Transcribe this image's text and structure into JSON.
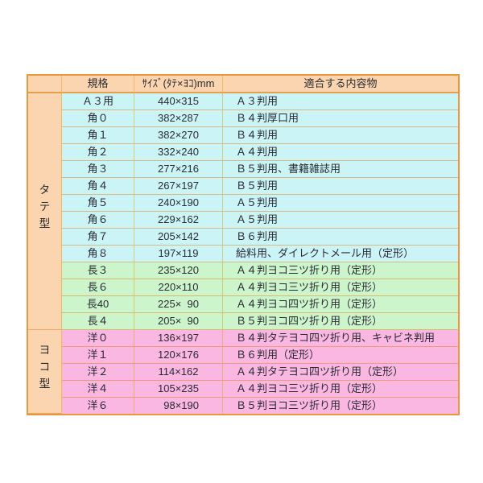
{
  "chart_data": {
    "type": "table",
    "headers": {
      "group": "",
      "kikaku": "規格",
      "size": "ｻｲｽﾞ(ﾀﾃ×ﾖｺ)mm",
      "content": "適合する内容物"
    },
    "groups": [
      {
        "label": "タテ型",
        "rowspan": 14
      },
      {
        "label": "ヨコ型",
        "rowspan": 5
      }
    ],
    "rows": [
      {
        "group": 0,
        "color": "cyan",
        "kikaku": "Ａ３用",
        "size": "440×315",
        "content": "Ａ３判用"
      },
      {
        "color": "cyan",
        "kikaku": "角０",
        "size": "382×287",
        "content": "Ｂ４判厚口用"
      },
      {
        "color": "cyan",
        "kikaku": "角１",
        "size": "382×270",
        "content": "Ｂ４判用"
      },
      {
        "color": "cyan",
        "kikaku": "角２",
        "size": "332×240",
        "content": "Ａ４判用"
      },
      {
        "color": "cyan",
        "kikaku": "角３",
        "size": "277×216",
        "content": "Ｂ５判用、書籍雑誌用"
      },
      {
        "color": "cyan",
        "kikaku": "角４",
        "size": "267×197",
        "content": "Ｂ５判用"
      },
      {
        "color": "cyan",
        "kikaku": "角５",
        "size": "240×190",
        "content": "Ａ５判用"
      },
      {
        "color": "cyan",
        "kikaku": "角６",
        "size": "229×162",
        "content": "Ａ５判用"
      },
      {
        "color": "cyan",
        "kikaku": "角７",
        "size": "205×142",
        "content": "Ｂ６判用"
      },
      {
        "color": "cyan",
        "kikaku": "角８",
        "size": "197×119",
        "content": "給料用、ダイレクトメール用（定形）"
      },
      {
        "color": "green",
        "kikaku": "長３",
        "size": "235×120",
        "content": "Ａ４判ヨコ三ツ折り用（定形）"
      },
      {
        "color": "green",
        "kikaku": "長６",
        "size": "220×110",
        "content": "Ａ４判ヨコ三ツ折り用（定形）"
      },
      {
        "color": "green",
        "kikaku": "長40",
        "size": "225×  90",
        "content": "Ａ４判ヨコ四ツ折り用（定形）"
      },
      {
        "color": "green",
        "kikaku": "長４",
        "size": "205×  90",
        "content": "Ｂ５判ヨコ四ツ折り用（定形）"
      },
      {
        "group": 1,
        "color": "pink",
        "kikaku": "洋０",
        "size": "136×197",
        "content": "Ｂ４判タテヨコ四ツ折り用、キャビネ判用"
      },
      {
        "color": "pink",
        "kikaku": "洋１",
        "size": "120×176",
        "content": "Ｂ６判用（定形）"
      },
      {
        "color": "pink",
        "kikaku": "洋２",
        "size": "114×162",
        "content": "Ａ４判タテヨコ四ツ折り用（定形）"
      },
      {
        "color": "pink",
        "kikaku": "洋４",
        "size": "105×235",
        "content": "Ａ４判ヨコ三ツ折り用（定形）"
      },
      {
        "color": "pink",
        "kikaku": "洋６",
        "size": "  98×190",
        "content": "Ｂ５判ヨコ三ツ折り用（定形）"
      }
    ],
    "colors": {
      "header_bg": "#FAD5AF",
      "cyan_row": "#CAF4F6",
      "green_row": "#CCF5CC",
      "pink_row": "#F9B7E2",
      "border_orange": "#E8973A",
      "text": "#2B2B33"
    }
  }
}
